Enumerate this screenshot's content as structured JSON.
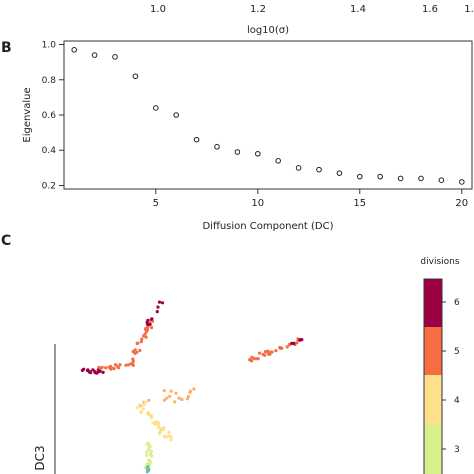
{
  "top_strip": {
    "ticks": [
      "1.0",
      "1.2",
      "1.4",
      "1.6",
      "1."
    ],
    "xlabel": "log10(σ)"
  },
  "panel_labels": {
    "b": "B",
    "c": "C"
  },
  "chart_data": [
    {
      "type": "scatter",
      "panel": "B",
      "xlabel": "Diffusion Component (DC)",
      "ylabel": "Eigenvalue",
      "xlim": [
        0.5,
        20.5
      ],
      "ylim": [
        0.18,
        1.02
      ],
      "xticks": [
        5,
        10,
        15,
        20
      ],
      "yticks": [
        0.2,
        0.4,
        0.6,
        0.8,
        1.0
      ],
      "grid": false,
      "x": [
        1,
        2,
        3,
        4,
        5,
        6,
        7,
        8,
        9,
        10,
        11,
        12,
        13,
        14,
        15,
        16,
        17,
        18,
        19,
        20
      ],
      "y": [
        0.97,
        0.94,
        0.93,
        0.82,
        0.64,
        0.6,
        0.46,
        0.42,
        0.39,
        0.38,
        0.34,
        0.3,
        0.29,
        0.27,
        0.25,
        0.25,
        0.24,
        0.24,
        0.23,
        0.22
      ]
    },
    {
      "type": "scatter",
      "panel": "C",
      "ylabel": "DC3",
      "colorbar": {
        "title": "divisions",
        "ticks": [
          "3",
          "4",
          "5",
          "6"
        ],
        "colors": [
          "#d9ef8b",
          "#fee08b",
          "#f46d43",
          "#9e0142"
        ]
      },
      "clusters": [
        {
          "divisions": 6,
          "color": "#9e0142",
          "count": 20
        },
        {
          "divisions": 5,
          "color": "#f46d43",
          "count": 60
        },
        {
          "divisions": 4,
          "color": "#fdae61",
          "count": 30
        },
        {
          "divisions": 3.5,
          "color": "#fee08b",
          "count": 50
        },
        {
          "divisions": 3,
          "color": "#d9ef8b",
          "count": 25
        },
        {
          "divisions": 2,
          "color": "#66c2a5",
          "count": 8
        }
      ]
    }
  ]
}
